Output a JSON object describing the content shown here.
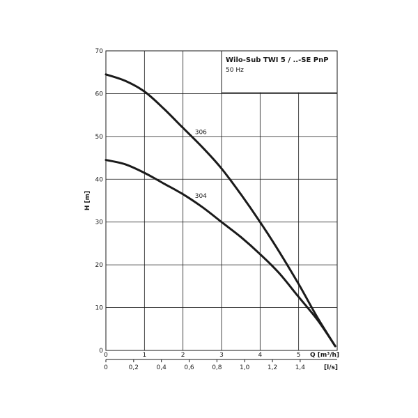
{
  "chart_data": {
    "type": "line",
    "title": "Wilo-Sub TWI 5 / ..-SE PnP",
    "subtitle": "50 Hz",
    "ylabel": "H [m]",
    "xlabel": "Q [m³/h]",
    "x2label": "[l/s]",
    "xlim": [
      0,
      6
    ],
    "ylim": [
      0,
      70
    ],
    "x_ticks": [
      "0",
      "1",
      "2",
      "3",
      "4",
      "5"
    ],
    "x2_ticks": [
      "0",
      "0,2",
      "0,4",
      "0,6",
      "0,8",
      "1,0",
      "1,2",
      "1,4"
    ],
    "y_ticks": [
      "0",
      "10",
      "20",
      "30",
      "40",
      "50",
      "60",
      "70"
    ],
    "grid": true,
    "colors": {
      "curve": "#1a1a1a"
    },
    "series": [
      {
        "name": "306",
        "x": [
          0,
          0.5,
          1,
          1.5,
          2,
          2.5,
          3,
          3.5,
          4,
          4.5,
          5,
          5.5,
          5.95
        ],
        "y": [
          64.5,
          63.0,
          60.5,
          56.5,
          52.0,
          47.5,
          42.5,
          36.5,
          30.0,
          23.0,
          15.5,
          7.5,
          1.0
        ]
      },
      {
        "name": "304",
        "x": [
          0,
          0.5,
          1,
          1.5,
          2,
          2.5,
          3,
          3.5,
          4,
          4.5,
          5,
          5.5,
          5.95
        ],
        "y": [
          44.5,
          43.5,
          41.5,
          39.0,
          36.5,
          33.5,
          30.0,
          26.5,
          22.5,
          18.0,
          12.5,
          7.0,
          1.0
        ]
      }
    ]
  }
}
